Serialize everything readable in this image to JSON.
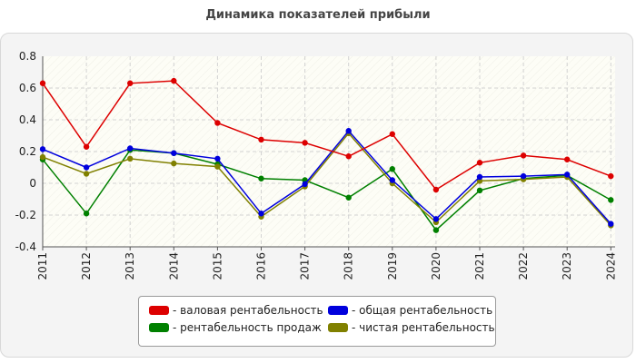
{
  "title": "Динамика показателей прибыли",
  "colors": {
    "gross": "#dd0000",
    "sales": "#008000",
    "total": "#0000dd",
    "net": "#808000"
  },
  "legend": {
    "gross": "- валовая рентабельность",
    "sales": "- рентабельность продаж",
    "total": "- общая рентабельность",
    "net": "- чистая рентабельность"
  },
  "chart_data": {
    "type": "line",
    "title": "Динамика показателей прибыли",
    "categories": [
      "2011",
      "2012",
      "2013",
      "2014",
      "2015",
      "2016",
      "2017",
      "2018",
      "2019",
      "2020",
      "2021",
      "2022",
      "2023",
      "2024"
    ],
    "ylim": [
      -0.4,
      0.8
    ],
    "yticks": [
      "0.8",
      "0.6",
      "0.4",
      "0.2",
      "0",
      "-0.2",
      "-0.4"
    ],
    "ytick_values": [
      0.8,
      0.6,
      0.4,
      0.2,
      0,
      -0.2,
      -0.4
    ],
    "grid": true,
    "legend_position": "bottom",
    "series": [
      {
        "key": "gross",
        "name": "валовая рентабельность",
        "values": [
          0.63,
          0.23,
          0.63,
          0.645,
          0.38,
          0.275,
          0.255,
          0.17,
          0.31,
          -0.04,
          0.13,
          0.175,
          0.15,
          0.045
        ]
      },
      {
        "key": "sales",
        "name": "рентабельность продаж",
        "values": [
          0.15,
          -0.19,
          0.21,
          0.19,
          0.12,
          0.03,
          0.02,
          -0.09,
          0.09,
          -0.295,
          -0.045,
          0.03,
          0.05,
          -0.105
        ]
      },
      {
        "key": "total",
        "name": "общая рентабельность",
        "values": [
          0.215,
          0.1,
          0.22,
          0.19,
          0.155,
          -0.19,
          -0.005,
          0.33,
          0.02,
          -0.225,
          0.04,
          0.045,
          0.055,
          -0.255
        ]
      },
      {
        "key": "net",
        "name": "чистая рентабельность",
        "values": [
          0.165,
          0.06,
          0.155,
          0.125,
          0.105,
          -0.21,
          -0.02,
          0.315,
          0.0,
          -0.245,
          0.015,
          0.025,
          0.04,
          -0.265
        ]
      }
    ]
  }
}
